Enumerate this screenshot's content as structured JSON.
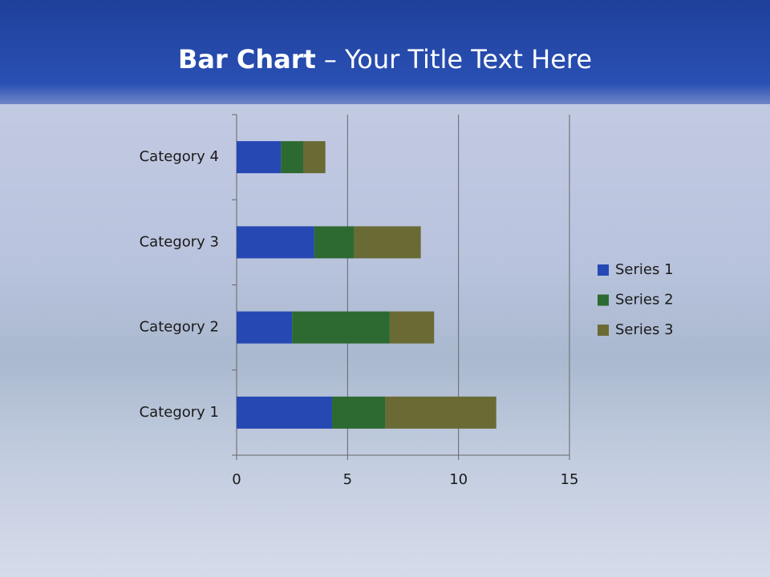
{
  "header": {
    "title_bold": "Bar Chart",
    "title_rest": "– Your Title Text Here"
  },
  "chart_data": {
    "type": "stacked-hbar",
    "categories": [
      "Category 1",
      "Category 2",
      "Category 3",
      "Category 4"
    ],
    "series": [
      {
        "name": "Series 1",
        "color": "#2548b3",
        "values": [
          4.3,
          2.5,
          3.5,
          2
        ]
      },
      {
        "name": "Series 2",
        "color": "#2d6a31",
        "values": [
          2.4,
          4.4,
          1.8,
          1
        ]
      },
      {
        "name": "Series 3",
        "color": "#6a6a35",
        "values": [
          5,
          2,
          3,
          1
        ]
      }
    ],
    "xlim": [
      0,
      15
    ],
    "xticks": [
      0,
      5,
      10,
      15
    ],
    "grid": true,
    "legend": "right"
  }
}
